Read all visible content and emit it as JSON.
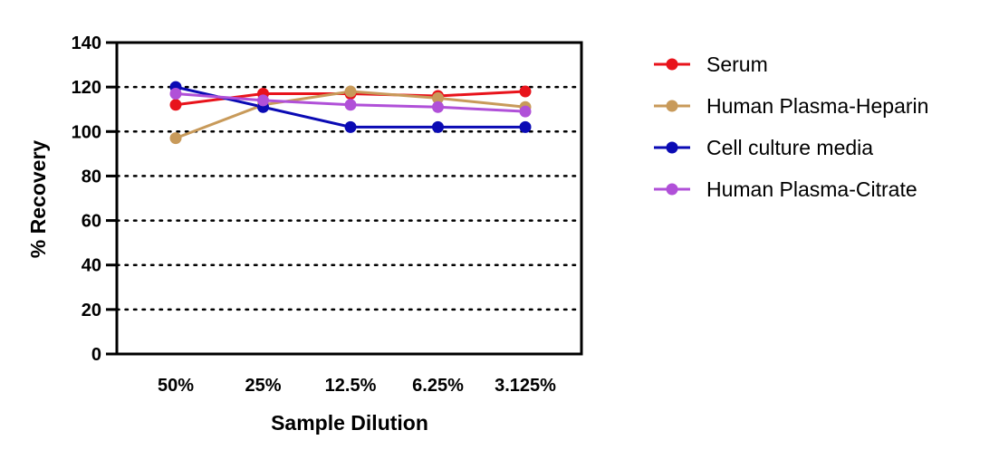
{
  "chart_data": {
    "type": "line",
    "title": "",
    "xlabel": "Sample Dilution",
    "ylabel": "% Recovery",
    "categories": [
      "50%",
      "25%",
      "12.5%",
      "6.25%",
      "3.125%"
    ],
    "ylim": [
      0,
      140
    ],
    "yticks": [
      0,
      20,
      40,
      60,
      80,
      100,
      120,
      140
    ],
    "grid": "horizontal dotted",
    "legend_position": "right",
    "series": [
      {
        "name": "Serum",
        "color": "#e8131b",
        "values": [
          112,
          117,
          117,
          116,
          118
        ]
      },
      {
        "name": "Human Plasma-Heparin",
        "color": "#c89a5a",
        "values": [
          97,
          112,
          118,
          115,
          111
        ]
      },
      {
        "name": "Cell culture media",
        "color": "#0a0ab4",
        "values": [
          120,
          111,
          102,
          102,
          102
        ]
      },
      {
        "name": "Human Plasma-Citrate",
        "color": "#b050d8",
        "values": [
          117,
          114,
          112,
          111,
          109
        ]
      }
    ]
  }
}
